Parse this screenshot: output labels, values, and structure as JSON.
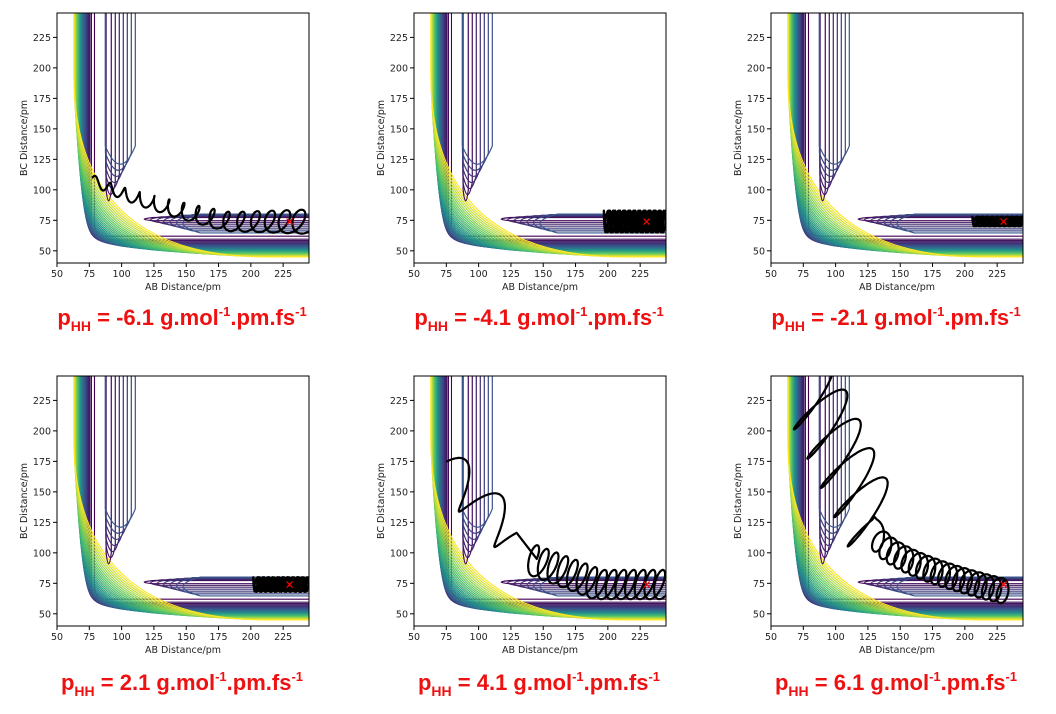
{
  "colors": {
    "caption": "#ee1111",
    "trajectory": "#000000",
    "marker": "#ff0000",
    "contour_low": "#440154",
    "contour_mid": "#21918c",
    "contour_high": "#fde725"
  },
  "chart_data": [
    {
      "type": "line",
      "caption": {
        "prefix": "p",
        "sub": "HH",
        "value": " = -6.1 g.mol",
        "sup1": "-1",
        "mid": ".pm.fs",
        "sup2": "-1"
      },
      "xlabel": "AB Distance/pm",
      "ylabel": "BC Distance/pm",
      "xlim": [
        50,
        245
      ],
      "ylim": [
        40,
        245
      ],
      "xticks": [
        "50",
        "75",
        "100",
        "125",
        "150",
        "175",
        "200",
        "225"
      ],
      "yticks": [
        "50",
        "75",
        "100",
        "125",
        "150",
        "175",
        "200",
        "225"
      ],
      "marker": {
        "x": 230,
        "y": 74
      },
      "trajectory": {
        "kind": "oscillate",
        "start": [
          77,
          110
        ],
        "end": [
          245,
          74
        ],
        "amplitude": 10,
        "cycles": 15
      }
    },
    {
      "type": "line",
      "caption": {
        "prefix": "p",
        "sub": "HH",
        "value": " = -4.1 g.mol",
        "sup1": "-1",
        "mid": ".pm.fs",
        "sup2": "-1"
      },
      "xlabel": "AB Distance/pm",
      "ylabel": "BC Distance/pm",
      "xlim": [
        50,
        245
      ],
      "ylim": [
        40,
        245
      ],
      "xticks": [
        "50",
        "75",
        "100",
        "125",
        "150",
        "175",
        "200",
        "225"
      ],
      "yticks": [
        "50",
        "75",
        "100",
        "125",
        "150",
        "175",
        "200",
        "225"
      ],
      "marker": {
        "x": 230,
        "y": 74
      },
      "trajectory": {
        "kind": "band",
        "start": [
          198,
          74
        ],
        "end": [
          245,
          74
        ],
        "amplitude": 9,
        "cycles": 12
      }
    },
    {
      "type": "line",
      "caption": {
        "prefix": "p",
        "sub": "HH",
        "value": " = -2.1 g.mol",
        "sup1": "-1",
        "mid": ".pm.fs",
        "sup2": "-1"
      },
      "xlabel": "AB Distance/pm",
      "ylabel": "BC Distance/pm",
      "xlim": [
        50,
        245
      ],
      "ylim": [
        40,
        245
      ],
      "xticks": [
        "50",
        "75",
        "100",
        "125",
        "150",
        "175",
        "200",
        "225"
      ],
      "yticks": [
        "50",
        "75",
        "100",
        "125",
        "150",
        "175",
        "200",
        "225"
      ],
      "marker": {
        "x": 230,
        "y": 74
      },
      "trajectory": {
        "kind": "band",
        "start": [
          207,
          74
        ],
        "end": [
          245,
          74
        ],
        "amplitude": 4,
        "cycles": 10
      }
    },
    {
      "type": "line",
      "caption": {
        "prefix": "p",
        "sub": "HH",
        "value": " = 2.1 g.mol",
        "sup1": "-1",
        "mid": ".pm.fs",
        "sup2": "-1"
      },
      "xlabel": "AB Distance/pm",
      "ylabel": "BC Distance/pm",
      "xlim": [
        50,
        245
      ],
      "ylim": [
        40,
        245
      ],
      "xticks": [
        "50",
        "75",
        "100",
        "125",
        "150",
        "175",
        "200",
        "225"
      ],
      "yticks": [
        "50",
        "75",
        "100",
        "125",
        "150",
        "175",
        "200",
        "225"
      ],
      "marker": {
        "x": 230,
        "y": 74
      },
      "trajectory": {
        "kind": "band",
        "start": [
          203,
          74
        ],
        "end": [
          245,
          74
        ],
        "amplitude": 6,
        "cycles": 11
      }
    },
    {
      "type": "line",
      "caption": {
        "prefix": "p",
        "sub": "HH",
        "value": " = 4.1 g.mol",
        "sup1": "-1",
        "mid": ".pm.fs",
        "sup2": "-1"
      },
      "xlabel": "AB Distance/pm",
      "ylabel": "BC Distance/pm",
      "xlim": [
        50,
        245
      ],
      "ylim": [
        40,
        245
      ],
      "xticks": [
        "50",
        "75",
        "100",
        "125",
        "150",
        "175",
        "200",
        "225"
      ],
      "yticks": [
        "50",
        "75",
        "100",
        "125",
        "150",
        "175",
        "200",
        "225"
      ],
      "marker": {
        "x": 230,
        "y": 74
      },
      "trajectory": {
        "kind": "zigzag",
        "start": [
          75,
          168
        ],
        "mid": [
          130,
          110
        ],
        "end": [
          245,
          74
        ],
        "amplitude": 12,
        "cycles": 14
      }
    },
    {
      "type": "line",
      "caption": {
        "prefix": "p",
        "sub": "HH",
        "value": " = 6.1 g.mol",
        "sup1": "-1",
        "mid": ".pm.fs",
        "sup2": "-1"
      },
      "xlabel": "AB Distance/pm",
      "ylabel": "BC Distance/pm",
      "xlim": [
        50,
        245
      ],
      "ylim": [
        40,
        245
      ],
      "xticks": [
        "50",
        "75",
        "100",
        "125",
        "150",
        "175",
        "200",
        "225"
      ],
      "yticks": [
        "50",
        "75",
        "100",
        "125",
        "150",
        "175",
        "200",
        "225"
      ],
      "marker": {
        "x": 230,
        "y": 74
      },
      "trajectory": {
        "kind": "diagonal",
        "start": [
          78,
          240
        ],
        "mid": [
          130,
          120
        ],
        "end": [
          232,
          68
        ],
        "amplitude": 10,
        "cycles": 18
      }
    }
  ]
}
